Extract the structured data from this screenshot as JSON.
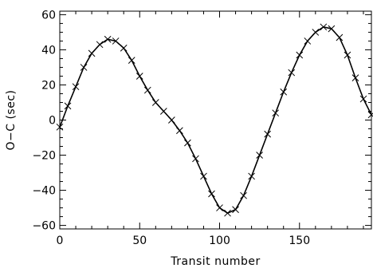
{
  "chart_data": {
    "type": "scatter",
    "xlabel": "Transit number",
    "ylabel": "O−C (sec)",
    "xlim": [
      0,
      195
    ],
    "ylim": [
      -62,
      62
    ],
    "xticks": [
      0,
      50,
      100,
      150
    ],
    "yticks": [
      -60,
      -40,
      -20,
      0,
      20,
      40,
      60
    ],
    "grid": false,
    "legend": "none",
    "marker": "cross",
    "series": [
      {
        "style": "markers",
        "x": [
          0,
          5,
          10,
          15,
          20,
          25,
          30,
          35,
          40,
          45,
          50,
          55,
          60,
          65,
          70,
          75,
          80,
          85,
          90,
          95,
          100,
          105,
          110,
          115,
          120,
          125,
          130,
          135,
          140,
          145,
          150,
          155,
          160,
          165,
          170,
          175,
          180,
          185,
          190,
          195
        ],
        "y": [
          -4,
          8,
          19,
          30,
          38,
          43,
          46,
          45,
          41,
          34,
          25,
          17,
          10,
          5,
          0,
          -6,
          -13,
          -22,
          -32,
          -42,
          -50,
          -53,
          -51,
          -43,
          -32,
          -20,
          -8,
          4,
          16,
          27,
          37,
          45,
          50,
          53,
          52,
          47,
          37,
          24,
          12,
          3
        ]
      },
      {
        "style": "line",
        "x": [
          0,
          5,
          10,
          15,
          20,
          25,
          30,
          35,
          40,
          45,
          50,
          55,
          60,
          65,
          70,
          75,
          80,
          85,
          90,
          95,
          100,
          105,
          110,
          115,
          120,
          125,
          130,
          135,
          140,
          145,
          150,
          155,
          160,
          165,
          170,
          175,
          180,
          185,
          190,
          195
        ],
        "y": [
          -4,
          8,
          19,
          30,
          38,
          43,
          46,
          45,
          41,
          34,
          25,
          17,
          10,
          5,
          0,
          -6,
          -13,
          -22,
          -32,
          -42,
          -50,
          -53,
          -51,
          -43,
          -32,
          -20,
          -8,
          4,
          16,
          27,
          37,
          45,
          50,
          53,
          52,
          47,
          37,
          24,
          12,
          3
        ]
      }
    ]
  }
}
